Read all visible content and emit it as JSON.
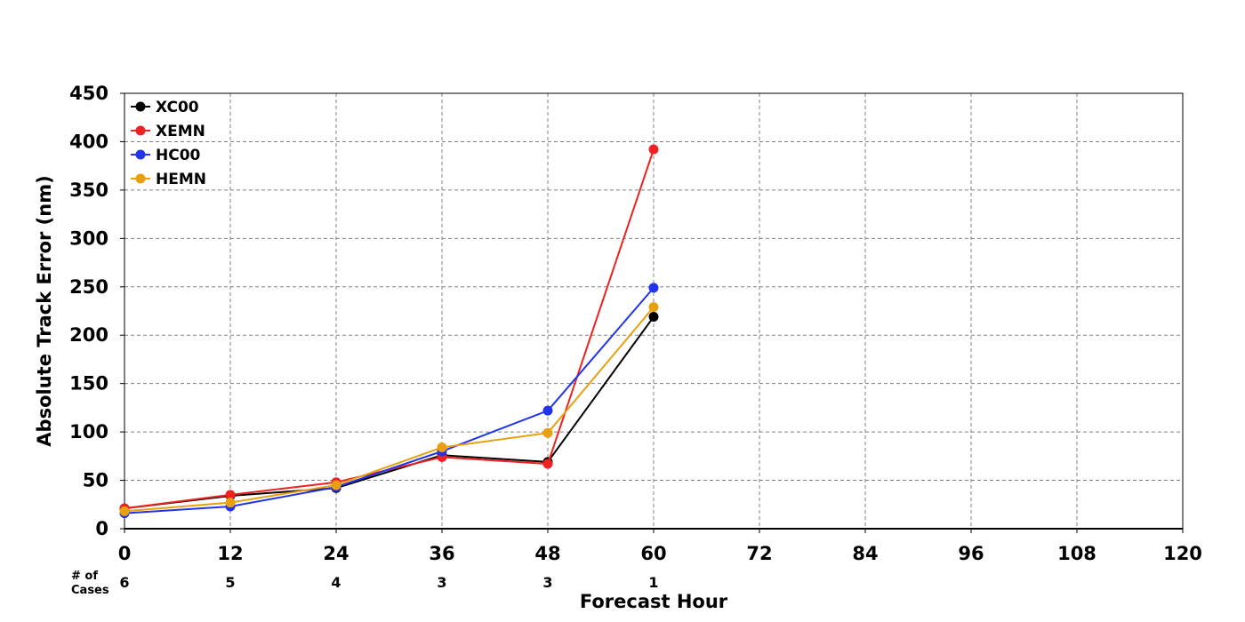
{
  "chart_data": {
    "type": "line",
    "xlabel": "Forecast Hour",
    "ylabel": "Absolute Track Error (nm)",
    "xlim": [
      0,
      120
    ],
    "ylim": [
      0,
      450
    ],
    "x_ticks": [
      0,
      12,
      24,
      36,
      48,
      60,
      72,
      84,
      96,
      108,
      120
    ],
    "y_ticks": [
      0,
      50,
      100,
      150,
      200,
      250,
      300,
      350,
      400,
      450
    ],
    "grid": true,
    "legend_position": "top-left",
    "cases_label": "# of\nCases",
    "cases": [
      {
        "x": 0,
        "count": "6"
      },
      {
        "x": 12,
        "count": "5"
      },
      {
        "x": 24,
        "count": "4"
      },
      {
        "x": 36,
        "count": "3"
      },
      {
        "x": 48,
        "count": "3"
      },
      {
        "x": 60,
        "count": "1"
      }
    ],
    "x": [
      0,
      12,
      24,
      36,
      48,
      60
    ],
    "series": [
      {
        "name": "XC00",
        "color": "#000000",
        "values": [
          21,
          34,
          42,
          76,
          69,
          219
        ]
      },
      {
        "name": "XEMN",
        "color": "#ee2222",
        "values": [
          21,
          35,
          48,
          74,
          67,
          392
        ]
      },
      {
        "name": "HC00",
        "color": "#2233ee",
        "values": [
          16,
          23,
          43,
          80,
          122,
          249
        ]
      },
      {
        "name": "HEMN",
        "color": "#e8a010",
        "values": [
          18,
          27,
          45,
          84,
          99,
          229
        ]
      }
    ]
  }
}
